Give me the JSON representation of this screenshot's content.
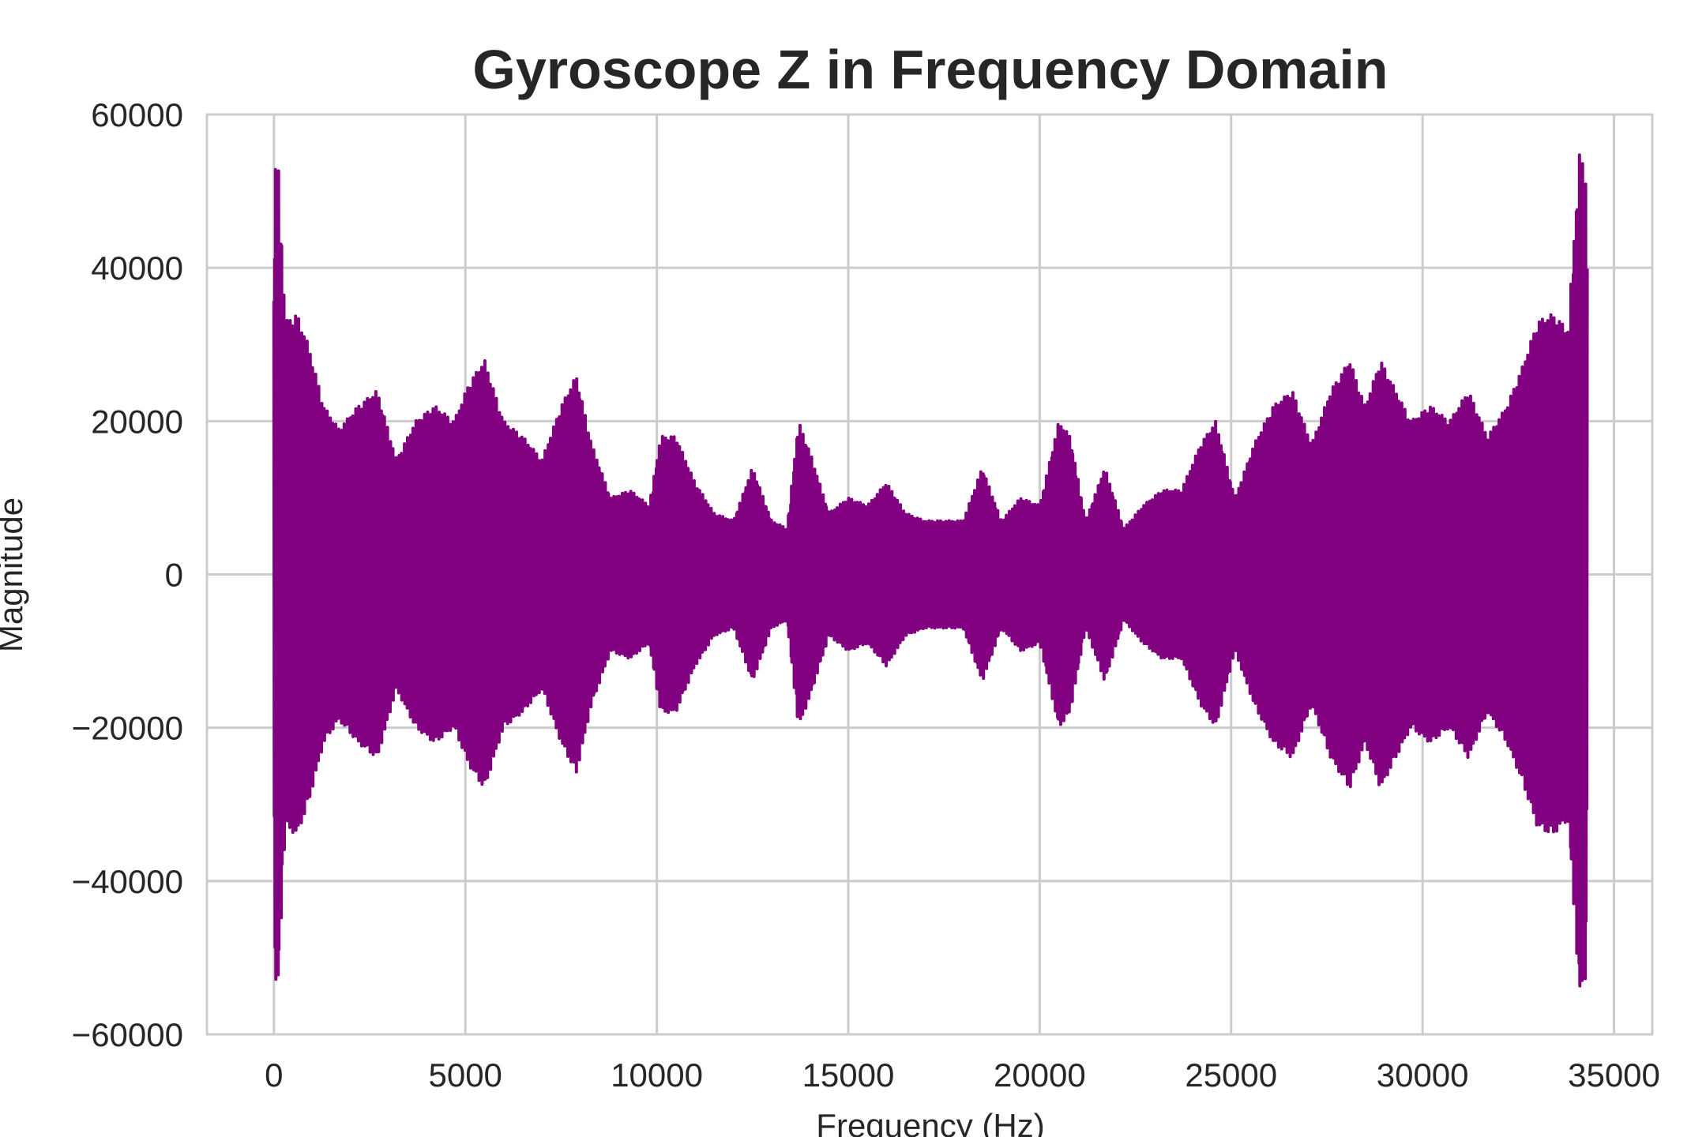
{
  "chart_data": {
    "type": "line",
    "title": "Gyroscope Z in Frequency Domain",
    "xlabel": "Frequency (Hz)",
    "ylabel": "Magnitude",
    "xlim": [
      -1750,
      36000
    ],
    "ylim": [
      -60000,
      60000
    ],
    "xticks": [
      0,
      5000,
      10000,
      15000,
      20000,
      25000,
      30000,
      35000
    ],
    "xtick_labels": [
      "0",
      "5000",
      "10000",
      "15000",
      "20000",
      "25000",
      "30000",
      "35000"
    ],
    "yticks": [
      -60000,
      -40000,
      -20000,
      0,
      20000,
      40000,
      60000
    ],
    "ytick_labels": [
      "−60000",
      "−40000",
      "−20000",
      "0",
      "20000",
      "40000",
      "60000"
    ],
    "grid": true,
    "legend": "none",
    "color": "#800080",
    "series": [
      {
        "envelope_upper": {
          "x": [
            0,
            100,
            300,
            600,
            900,
            1300,
            1700,
            2200,
            2700,
            3200,
            3700,
            4200,
            4700,
            5100,
            5500,
            6000,
            6500,
            7000,
            7500,
            7900,
            8300,
            8800,
            9300,
            9800,
            10100,
            10500,
            11000,
            11500,
            12000,
            12500,
            13000,
            13400,
            13700,
            14000,
            14500,
            15000,
            15500,
            16000,
            16500,
            17000,
            17500,
            18000,
            18500,
            19000,
            19500,
            20000,
            20500,
            20800,
            21200,
            21700,
            22200,
            22700,
            23200,
            23700,
            24200,
            24600,
            25100,
            25600,
            26100,
            26600,
            27100,
            27600,
            28100,
            28500,
            28900,
            29300,
            29700,
            30200,
            30700,
            31200,
            31700,
            32200,
            32600,
            33000,
            33400,
            33800,
            34100,
            34300
          ],
          "y": [
            52000,
            55000,
            33000,
            34000,
            30000,
            22000,
            19000,
            22000,
            24000,
            15000,
            20000,
            22000,
            20000,
            25000,
            28000,
            20000,
            18000,
            15000,
            22000,
            26000,
            17000,
            10000,
            11000,
            9000,
            18000,
            18000,
            12000,
            8000,
            7000,
            14000,
            7000,
            6000,
            20000,
            16000,
            8000,
            10000,
            9000,
            12000,
            8000,
            7000,
            7000,
            7000,
            14000,
            7000,
            10000,
            9000,
            20000,
            18000,
            7000,
            14000,
            6000,
            9000,
            11000,
            11000,
            17000,
            20000,
            10000,
            17000,
            22000,
            24000,
            17000,
            24000,
            28000,
            22000,
            28000,
            24000,
            20000,
            22000,
            20000,
            24000,
            18000,
            22000,
            27000,
            33000,
            34000,
            32000,
            55000,
            52000
          ]
        }
      }
    ]
  }
}
